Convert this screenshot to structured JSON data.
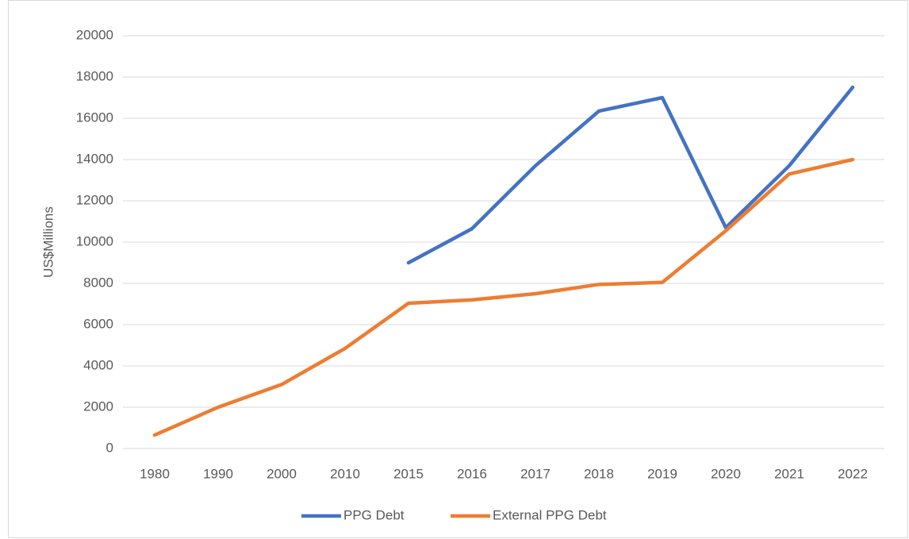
{
  "chart_data": {
    "type": "line",
    "ylabel": "US$Millions",
    "categories": [
      "1980",
      "1990",
      "2000",
      "2010",
      "2015",
      "2016",
      "2017",
      "2018",
      "2019",
      "2020",
      "2021",
      "2022"
    ],
    "series": [
      {
        "name": "PPG Debt",
        "color": "#4472c4",
        "values": [
          null,
          null,
          null,
          null,
          9000,
          10650,
          13700,
          16350,
          17000,
          10700,
          13700,
          17500
        ]
      },
      {
        "name": "External PPG Debt",
        "color": "#ed7d31",
        "values": [
          650,
          2000,
          3100,
          4850,
          7040,
          7200,
          7500,
          7950,
          8050,
          10550,
          13300,
          14000
        ]
      }
    ],
    "ylim": [
      0,
      20000
    ],
    "yticks": [
      0,
      2000,
      4000,
      6000,
      8000,
      10000,
      12000,
      14000,
      16000,
      18000,
      20000
    ],
    "grid": true,
    "legend": "bottom"
  }
}
